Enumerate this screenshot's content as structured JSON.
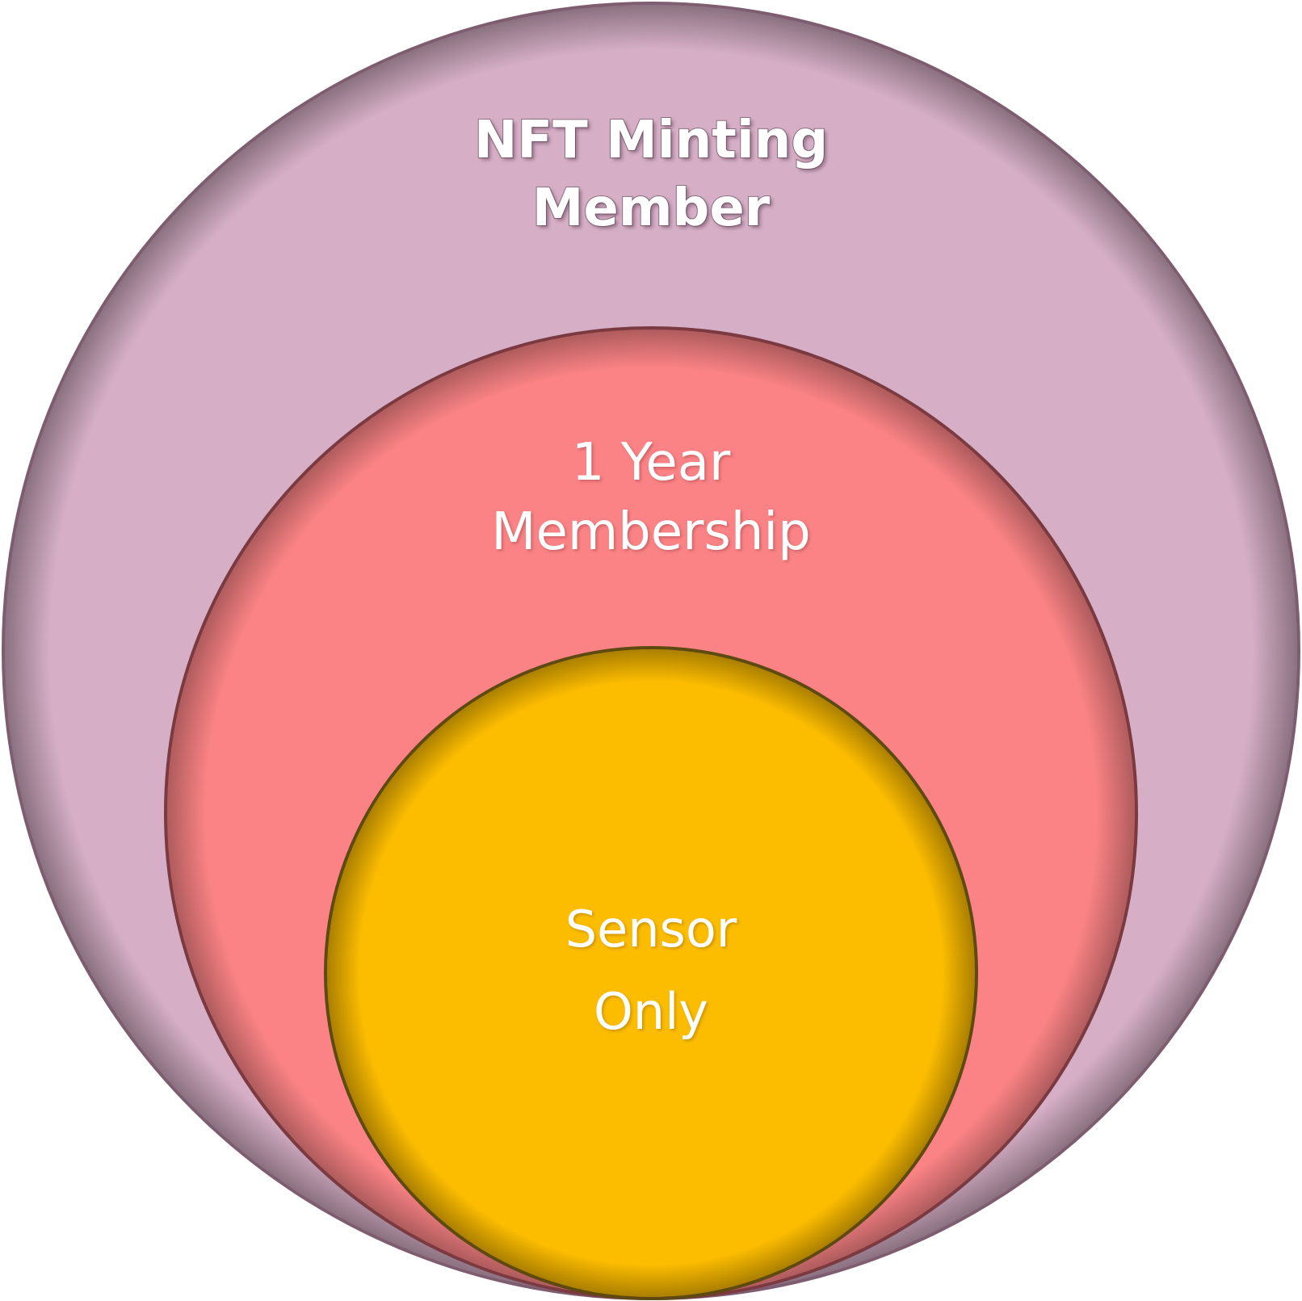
{
  "colors": {
    "outer_fill": "#d6afc6",
    "middle_fill": "#fb8385",
    "inner_fill": "#fcbc00"
  },
  "circles": {
    "outer": {
      "line1": "NFT Minting",
      "line2": "Member"
    },
    "middle": {
      "line1": "1 Year",
      "line2": "Membership"
    },
    "inner": {
      "line1": "Sensor",
      "line2": "Only"
    }
  }
}
